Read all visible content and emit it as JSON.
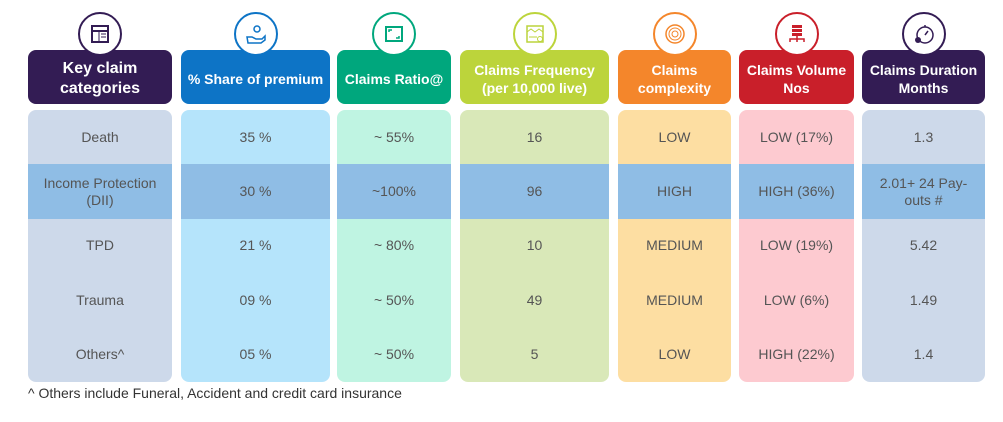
{
  "columns": [
    {
      "title": "Key claim categories",
      "header_color": "#331c54",
      "body_color": "#cdd9ea",
      "icon": "table-icon",
      "values": [
        "Death",
        "Income Protection (DII)",
        "TPD",
        "Trauma",
        "Others^"
      ]
    },
    {
      "title": "% Share of premium",
      "header_color": "#0d74c6",
      "body_color": "#b5e4fb",
      "icon": "hand-coin-icon",
      "values": [
        "35 %",
        "30 %",
        "21 %",
        "09 %",
        "05 %"
      ]
    },
    {
      "title": "Claims Ratio@",
      "header_color": "#00a77d",
      "body_color": "#bff4e2",
      "icon": "frame-icon",
      "values": [
        "~ 55%",
        "~100%",
        "~ 80%",
        "~ 50%",
        "~ 50%"
      ]
    },
    {
      "title": "Claims Frequency (per 10,000 live)",
      "header_color": "#bcd43b",
      "body_color": "#d9e8b8",
      "icon": "chart-card-icon",
      "values": [
        "16",
        "96",
        "10",
        "49",
        "5"
      ]
    },
    {
      "title": "Claims complexity",
      "header_color": "#f4862b",
      "body_color": "#fddea2",
      "icon": "maze-icon",
      "values": [
        "LOW",
        "HIGH",
        "MEDIUM",
        "MEDIUM",
        "LOW"
      ]
    },
    {
      "title": "Claims Volume Nos",
      "header_color": "#c91f2a",
      "body_color": "#fdcad0",
      "icon": "database-network-icon",
      "values": [
        "LOW (17%)",
        "HIGH (36%)",
        "LOW (19%)",
        "LOW (6%)",
        "HIGH (22%)"
      ]
    },
    {
      "title": "Claims Duration Months",
      "header_color": "#331c54",
      "body_color": "#cdd9ea",
      "icon": "stopwatch-icon",
      "values": [
        "1.3",
        "2.01+ 24 Pay-outs #",
        "5.42",
        "1.49",
        "1.4"
      ]
    }
  ],
  "highlight_row": 1,
  "footnote": "^ Others include Funeral, Accident and credit card insurance"
}
